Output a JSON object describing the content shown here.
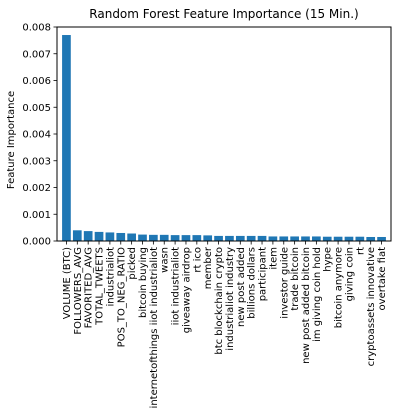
{
  "chart_data": {
    "type": "bar",
    "title": "Random Forest Feature Importance (15 Min.)",
    "xlabel": "",
    "ylabel": "Feature Importance",
    "ylim": [
      0,
      0.008
    ],
    "yticks": [
      "0.000",
      "0.001",
      "0.002",
      "0.003",
      "0.004",
      "0.005",
      "0.006",
      "0.007",
      "0.008"
    ],
    "grid": false,
    "bar_color": "#1f77b4",
    "categories": [
      "VOLUME (BTC)",
      "FOLLOWERS_AVG",
      "FAVORITED_AVG",
      "TOTAL_TWEETS",
      "industrialiot",
      "POS_TO_NEG_RATIO",
      "picked",
      "bitcoin buying",
      "internetofthings iiot industrialiot",
      "wasn",
      "iiot industrialiot",
      "giveaway airdrop",
      "rt ico",
      "member",
      "btc blockchain crypto",
      "industrialiot industry",
      "new post added",
      "billions dollars",
      "participant",
      "item",
      "investor guide",
      "trade bitcoin",
      "new post added bitcoin",
      "im giving coin hold",
      "hype",
      "bitcoin anymore",
      "giving coin",
      "rt",
      "cryptoassets innovative",
      "overtake fiat"
    ],
    "values": [
      0.0077,
      0.0004,
      0.00037,
      0.00034,
      0.00032,
      0.0003,
      0.00028,
      0.00024,
      0.00023,
      0.00023,
      0.00022,
      0.00022,
      0.00022,
      0.00021,
      0.00019,
      0.00019,
      0.00019,
      0.00019,
      0.00019,
      0.00017,
      0.00017,
      0.00017,
      0.00017,
      0.00017,
      0.00016,
      0.00016,
      0.00016,
      0.00016,
      0.00015,
      0.00015
    ]
  }
}
